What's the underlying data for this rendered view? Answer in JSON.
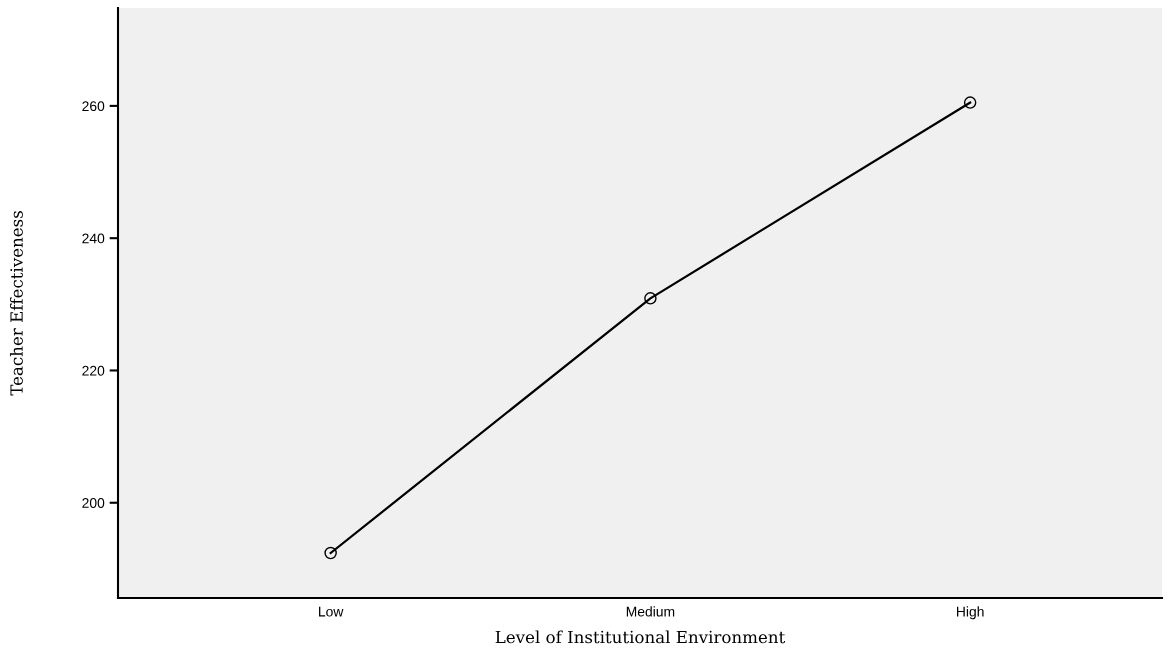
{
  "chart_data": {
    "type": "line",
    "xlabel": "Level of Institutional Environment",
    "ylabel": "Teacher Effectiveness",
    "categories": [
      "Low",
      "Medium",
      "High"
    ],
    "series": [
      {
        "color": "#000000",
        "values": [
          192.4,
          230.9,
          260.5
        ]
      }
    ],
    "ylim": [
      185.6,
      274.8
    ],
    "yticks": [
      200,
      220,
      240,
      260
    ],
    "grid": false,
    "legend": false,
    "marker": "circle",
    "line_style": "solid"
  }
}
